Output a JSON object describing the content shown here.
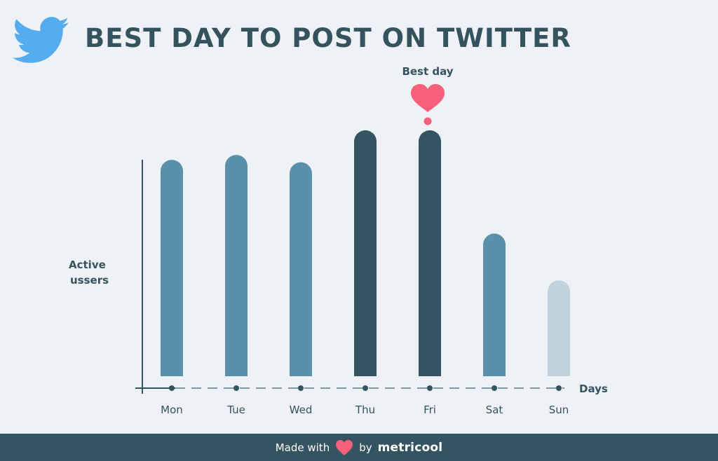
{
  "header": {
    "title": "BEST DAY TO POST ON TWITTER",
    "logo_icon": "twitter-bird-icon"
  },
  "chart_data": {
    "type": "bar",
    "title": "BEST DAY TO POST ON TWITTER",
    "xlabel": "Days",
    "ylabel": "Active\nussers",
    "categories": [
      "Mon",
      "Tue",
      "Wed",
      "Thu",
      "Fri",
      "Sat",
      "Sun"
    ],
    "values": [
      88,
      90,
      87,
      100,
      100,
      58,
      39
    ],
    "ylim": [
      0,
      100
    ],
    "highlight": [
      "Thu",
      "Fri"
    ],
    "annotation": {
      "text": "Best day",
      "category": "Fri",
      "icon": "heart-icon"
    },
    "grid": false,
    "legend": "none"
  },
  "colors": {
    "background": "#eef2f6",
    "bar_default": "#5b90aa",
    "bar_highlight": "#355461",
    "bar_low": "#c0d3dd",
    "axis": "#355461",
    "text": "#35535f",
    "heart": "#f6607a",
    "twitter_blue": "#55acee",
    "footer_bg": "#355461"
  },
  "footer": {
    "made_with": "Made with",
    "by": "by",
    "brand": "metricool"
  }
}
